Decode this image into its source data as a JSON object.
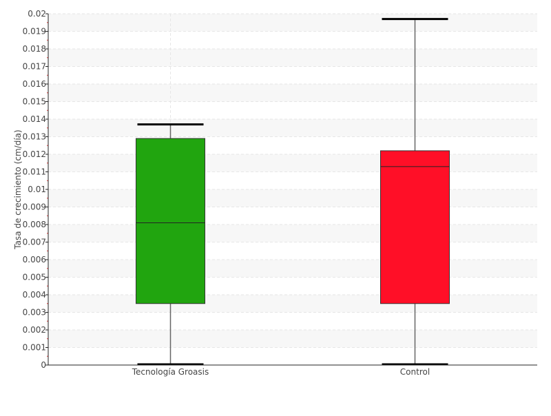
{
  "chart_data": {
    "type": "boxplot",
    "ylabel": "Tasa de crecimiento (cm/día)",
    "xlabel": "",
    "ylim": [
      0,
      0.02
    ],
    "yticks": [
      "0",
      "0.001",
      "0.002",
      "0.003",
      "0.004",
      "0.005",
      "0.006",
      "0.007",
      "0.008",
      "0.009",
      "0.01",
      "0.011",
      "0.012",
      "0.013",
      "0.014",
      "0.015",
      "0.016",
      "0.017",
      "0.018",
      "0.019",
      "0.02"
    ],
    "grid": true,
    "categories": [
      "Tecnología Groasis",
      "Control"
    ],
    "boxes": [
      {
        "category": "Tecnología Groasis",
        "min": 0,
        "q1": 0.0035,
        "median": 0.0081,
        "q3": 0.0129,
        "max": 0.0137,
        "color": "#21a50f"
      },
      {
        "category": "Control",
        "min": 0,
        "q1": 0.0035,
        "median": 0.0113,
        "q3": 0.0122,
        "max": 0.0197,
        "color": "#ff0f27"
      }
    ]
  }
}
